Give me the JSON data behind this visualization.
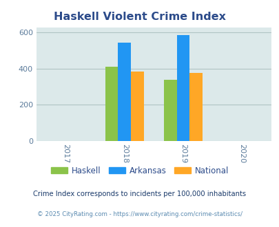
{
  "title": "Haskell Violent Crime Index",
  "title_color": "#2c4b8a",
  "years": [
    2017,
    2018,
    2019,
    2020
  ],
  "bar_years": [
    2018,
    2019
  ],
  "haskell": [
    410,
    340
  ],
  "arkansas": [
    545,
    585
  ],
  "national": [
    383,
    377
  ],
  "colors": {
    "haskell": "#8bc34a",
    "arkansas": "#2196f3",
    "national": "#ffa726"
  },
  "ylim": [
    0,
    630
  ],
  "yticks": [
    0,
    200,
    400,
    600
  ],
  "plot_bg": "#dce9ea",
  "fig_bg": "#ffffff",
  "legend_labels": [
    "Haskell",
    "Arkansas",
    "National"
  ],
  "footnote1": "Crime Index corresponds to incidents per 100,000 inhabitants",
  "footnote2": "© 2025 CityRating.com - https://www.cityrating.com/crime-statistics/",
  "bar_width": 0.22,
  "grid_color": "#b0c4c4",
  "tick_color": "#5a7a9a",
  "legend_color": "#2c4b8a",
  "footnote1_color": "#1a3a6a",
  "footnote2_color": "#5a8ab0"
}
